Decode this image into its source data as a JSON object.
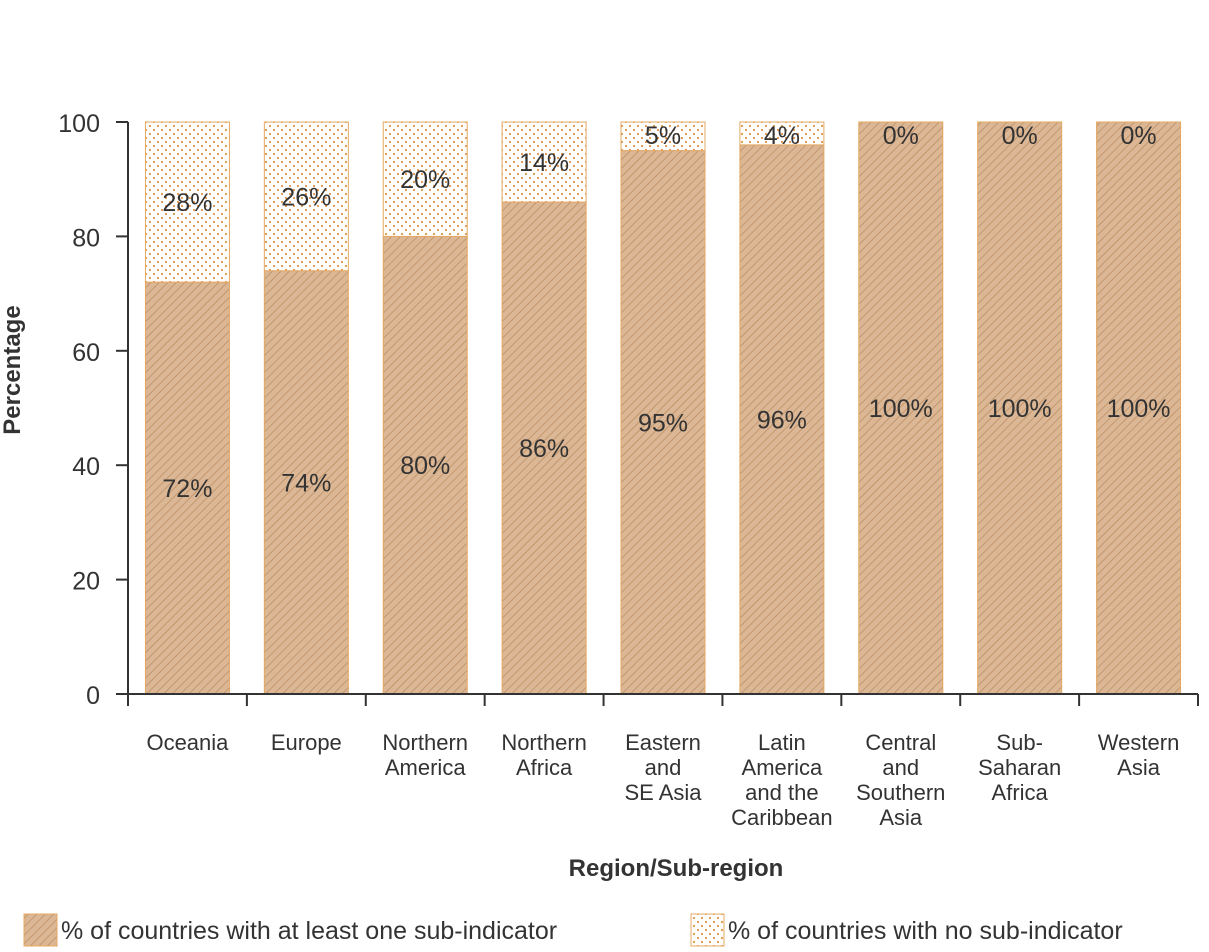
{
  "chart_data": {
    "type": "bar",
    "stacked": true,
    "categories": [
      [
        "Oceania"
      ],
      [
        "Europe"
      ],
      [
        "Northern",
        "America"
      ],
      [
        "Northern",
        "Africa"
      ],
      [
        "Eastern",
        "and",
        "SE Asia"
      ],
      [
        "Latin",
        "America",
        "and the",
        "Caribbean"
      ],
      [
        "Central",
        "and",
        "Southern",
        "Asia"
      ],
      [
        "Sub-",
        "Saharan",
        "Africa"
      ],
      [
        "Western",
        "Asia"
      ]
    ],
    "series": [
      {
        "name": "% of countries with at least one sub-indicator",
        "values": [
          72,
          74,
          80,
          86,
          95,
          96,
          100,
          100,
          100
        ],
        "labels": [
          "72%",
          "74%",
          "80%",
          "86%",
          "95%",
          "96%",
          "100%",
          "100%",
          "100%"
        ]
      },
      {
        "name": "% of countries with no sub-indicator",
        "values": [
          28,
          26,
          20,
          14,
          5,
          4,
          0,
          0,
          0
        ],
        "labels": [
          "28%",
          "26%",
          "20%",
          "14%",
          "5%",
          "4%",
          "0%",
          "0%",
          "0%"
        ]
      }
    ],
    "xlabel": "Region/Sub-region",
    "ylabel": "Percentage",
    "ylim": [
      0,
      100
    ],
    "yticks": [
      "0",
      "20",
      "40",
      "60",
      "80",
      "100"
    ],
    "grid": false,
    "legend_position": "bottom",
    "colors": {
      "bar_fill": "#dcb795",
      "bar_hatch": "#b88a5e",
      "bar_border": "#e4a860",
      "dots": "#e0944a",
      "axis": "#333333"
    }
  }
}
